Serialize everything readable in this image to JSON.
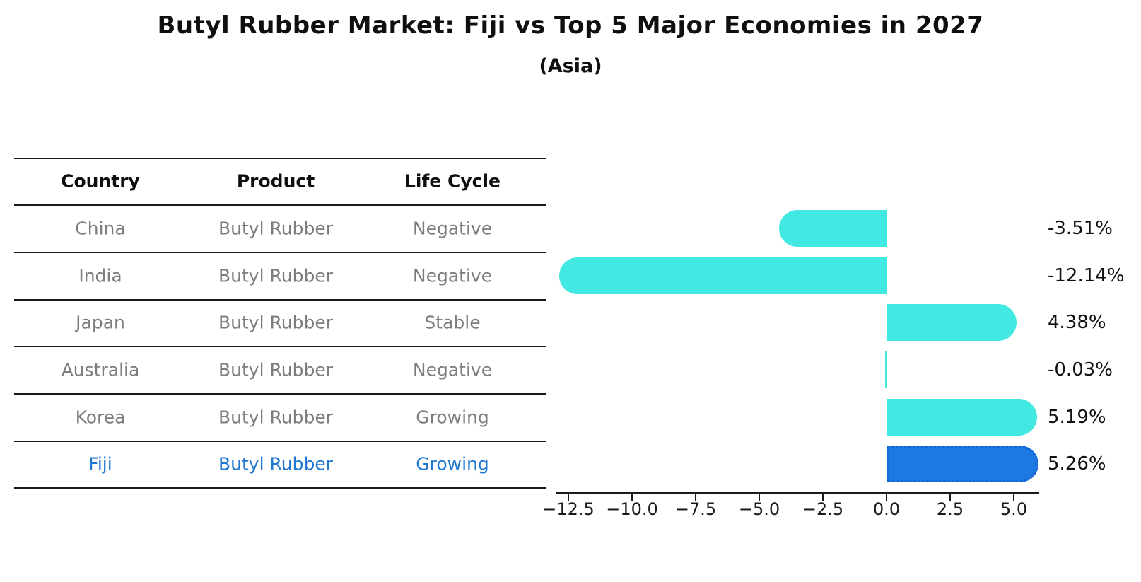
{
  "title": "Butyl Rubber Market: Fiji vs Top 5 Major Economies in 2027",
  "subtitle": "(Asia)",
  "colors": {
    "bar": "#42e8e2",
    "highlight_bar": "#1e78e1",
    "highlight_border": "#1362d6",
    "highlight_text": "#1f77d2",
    "row_text": "#7d7d7d",
    "header_text": "#0f0f0f"
  },
  "table": {
    "headers": [
      "Country",
      "Product",
      "Life Cycle"
    ],
    "rows": [
      [
        "China",
        "Butyl Rubber",
        "Negative"
      ],
      [
        "India",
        "Butyl Rubber",
        "Negative"
      ],
      [
        "Japan",
        "Butyl Rubber",
        "Stable"
      ],
      [
        "Australia",
        "Butyl Rubber",
        "Negative"
      ],
      [
        "Korea",
        "Butyl Rubber",
        "Growing"
      ],
      [
        "Fiji",
        "Butyl Rubber",
        "Growing"
      ]
    ],
    "highlight_row": 5
  },
  "chart_data": {
    "type": "bar",
    "orientation": "horizontal",
    "title": "Butyl Rubber Market: Fiji vs Top 5 Major Economies in 2027",
    "subtitle": "(Asia)",
    "categories": [
      "China",
      "India",
      "Japan",
      "Australia",
      "Korea",
      "Fiji"
    ],
    "values": [
      -3.51,
      -12.14,
      4.38,
      -0.03,
      5.19,
      5.26
    ],
    "labels": [
      "-3.51%",
      "-12.14%",
      "4.38%",
      "-0.03%",
      "5.19%",
      "5.26%"
    ],
    "value_unit": "percent",
    "x_tick_values": [
      -12.5,
      -10.0,
      -7.5,
      -5.0,
      -2.5,
      0.0,
      2.5,
      5.0
    ],
    "x_tick_labels": [
      "−12.5",
      "−10.0",
      "−7.5",
      "−5.0",
      "−2.5",
      "0.0",
      "2.5",
      "5.0"
    ],
    "xlim": [
      -13.0,
      6.0
    ],
    "grid": false,
    "legend": false,
    "highlight_index": 5,
    "highlight_category": "Fiji"
  }
}
